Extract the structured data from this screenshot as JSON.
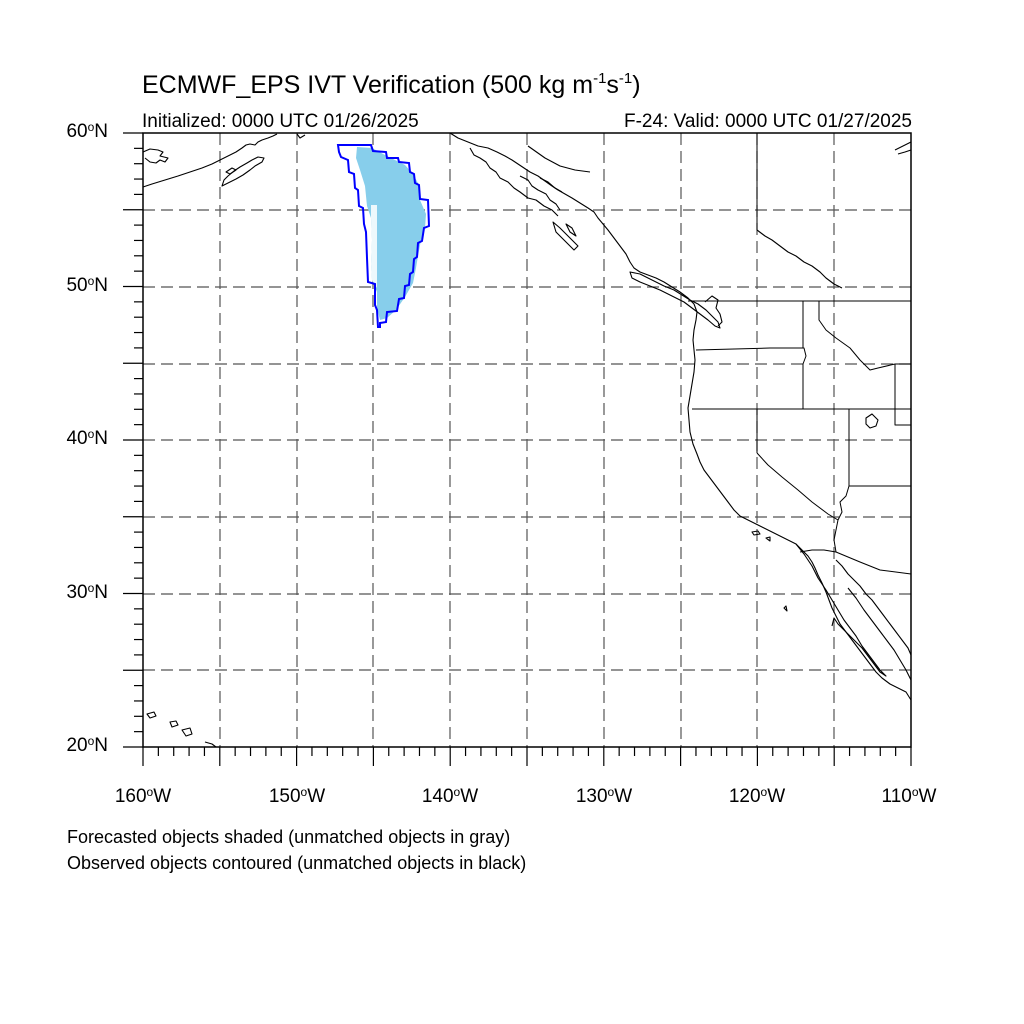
{
  "title": {
    "main": "ECMWF_EPS IVT Verification (500 kg m",
    "exp1": "-1",
    "mid": "s",
    "exp2": "-1",
    "close": ")"
  },
  "subtitle_left": "Initialized: 0000 UTC 01/26/2025",
  "subtitle_right": "F-24: Valid: 0000 UTC 01/27/2025",
  "lat_labels": [
    {
      "value": "60",
      "hemi": "N"
    },
    {
      "value": "50",
      "hemi": "N"
    },
    {
      "value": "40",
      "hemi": "N"
    },
    {
      "value": "30",
      "hemi": "N"
    },
    {
      "value": "20",
      "hemi": "N"
    }
  ],
  "lon_labels": [
    {
      "value": "160",
      "hemi": "W"
    },
    {
      "value": "150",
      "hemi": "W"
    },
    {
      "value": "140",
      "hemi": "W"
    },
    {
      "value": "130",
      "hemi": "W"
    },
    {
      "value": "120",
      "hemi": "W"
    },
    {
      "value": "110",
      "hemi": "W"
    }
  ],
  "degree_symbol": "o",
  "notes": [
    "Forecasted objects shaded (unmatched objects in gray)",
    "Observed objects contoured (unmatched objects in black)"
  ],
  "map": {
    "lon_range": [
      -160,
      -110
    ],
    "lat_range": [
      20,
      60
    ],
    "forecast_object_color": "#87ceeb",
    "observed_contour_color": "#0000ff",
    "coastline_color": "#000000",
    "grid_style": "dashed, every 5 degrees"
  }
}
